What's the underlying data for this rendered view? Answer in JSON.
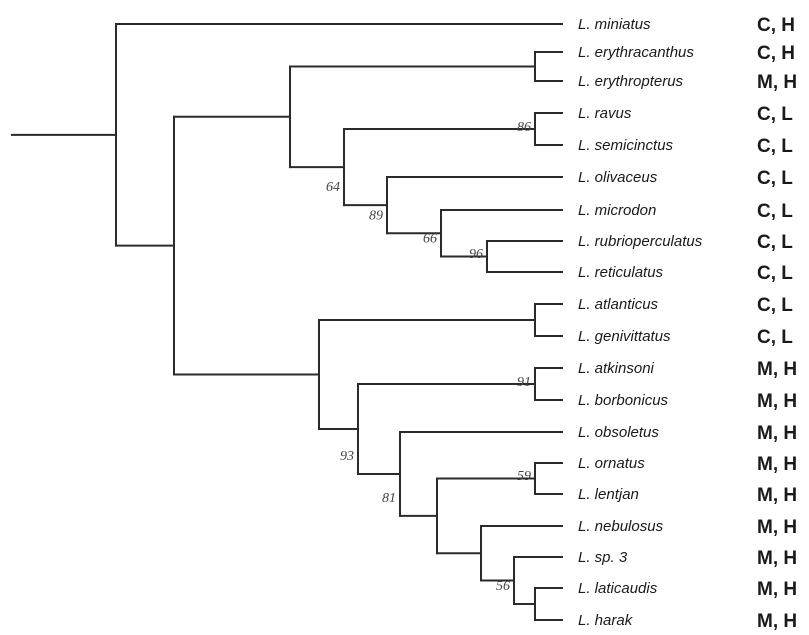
{
  "tree": {
    "taxa": [
      {
        "label": "L. miniatus",
        "code": "C, H"
      },
      {
        "label": "L. erythracanthus",
        "code": "C, H"
      },
      {
        "label": "L. erythropterus",
        "code": "M, H"
      },
      {
        "label": "L. ravus",
        "code": "C, L"
      },
      {
        "label": "L. semicinctus",
        "code": "C, L"
      },
      {
        "label": "L. olivaceus",
        "code": "C, L"
      },
      {
        "label": "L. microdon",
        "code": "C, L"
      },
      {
        "label": "L. rubrioperculatus",
        "code": "C, L"
      },
      {
        "label": "L. reticulatus",
        "code": "C, L"
      },
      {
        "label": "L. atlanticus",
        "code": "C, L"
      },
      {
        "label": "L. genivittatus",
        "code": "C, L"
      },
      {
        "label": "L. atkinsoni",
        "code": "M, H"
      },
      {
        "label": "L. borbonicus",
        "code": "M, H"
      },
      {
        "label": "L. obsoletus",
        "code": "M, H"
      },
      {
        "label": "L. ornatus",
        "code": "M, H"
      },
      {
        "label": "L. lentjan",
        "code": "M, H"
      },
      {
        "label": "L. nebulosus",
        "code": "M, H"
      },
      {
        "label": "L. sp. 3",
        "code": "M, H"
      },
      {
        "label": "L. laticaudis",
        "code": "M, H"
      },
      {
        "label": "L. harak",
        "code": "M, H"
      }
    ],
    "support_values": {
      "ravus_semicinctus": "86",
      "node_64": "64",
      "node_89": "89",
      "node_66": "66",
      "rubrioperculatus_reticulatus": "96",
      "atkinsoni_borbonicus": "91",
      "node_93": "93",
      "node_81": "81",
      "ornatus_lentjan": "59",
      "node_56": "56"
    }
  }
}
